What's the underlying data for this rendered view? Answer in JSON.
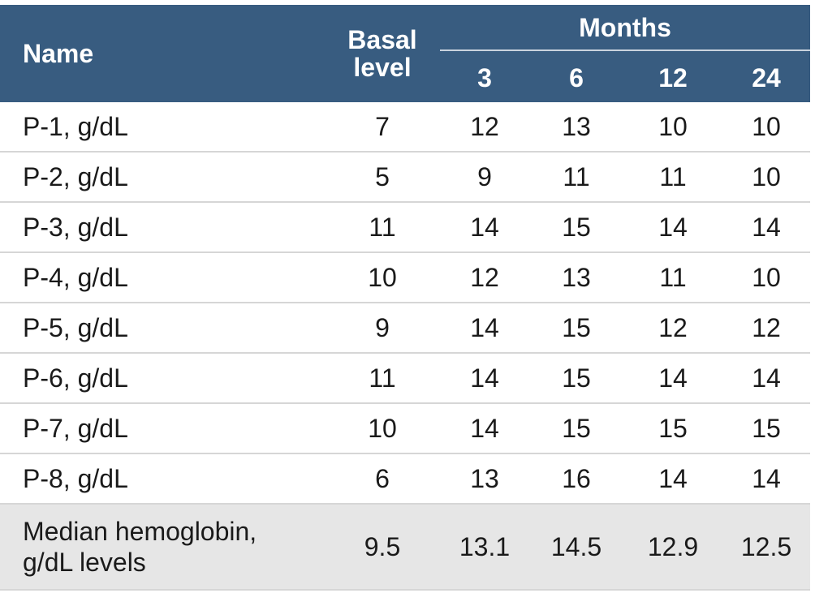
{
  "header": {
    "name": "Name",
    "basal": "Basal level",
    "months": "Months",
    "month_cols": [
      "3",
      "6",
      "12",
      "24"
    ]
  },
  "rows": [
    {
      "name": "P-1, g/dL",
      "values": [
        "7",
        "12",
        "13",
        "10",
        "10"
      ]
    },
    {
      "name": "P-2, g/dL",
      "values": [
        "5",
        "9",
        "11",
        "11",
        "10"
      ]
    },
    {
      "name": "P-3, g/dL",
      "values": [
        "11",
        "14",
        "15",
        "14",
        "14"
      ]
    },
    {
      "name": "P-4, g/dL",
      "values": [
        "10",
        "12",
        "13",
        "11",
        "10"
      ]
    },
    {
      "name": "P-5, g/dL",
      "values": [
        "9",
        "14",
        "15",
        "12",
        "12"
      ]
    },
    {
      "name": "P-6, g/dL",
      "values": [
        "11",
        "14",
        "15",
        "14",
        "14"
      ]
    },
    {
      "name": "P-7, g/dL",
      "values": [
        "10",
        "14",
        "15",
        "15",
        "15"
      ]
    },
    {
      "name": "P-8, g/dL",
      "values": [
        "6",
        "13",
        "16",
        "14",
        "14"
      ]
    }
  ],
  "median": {
    "name": "Median hemoglobin, g/dL levels",
    "values": [
      "9.5",
      "13.1",
      "14.5",
      "12.9",
      "12.5"
    ]
  },
  "colors": {
    "header_bg": "#385c80",
    "median_bg": "#e6e6e6"
  }
}
